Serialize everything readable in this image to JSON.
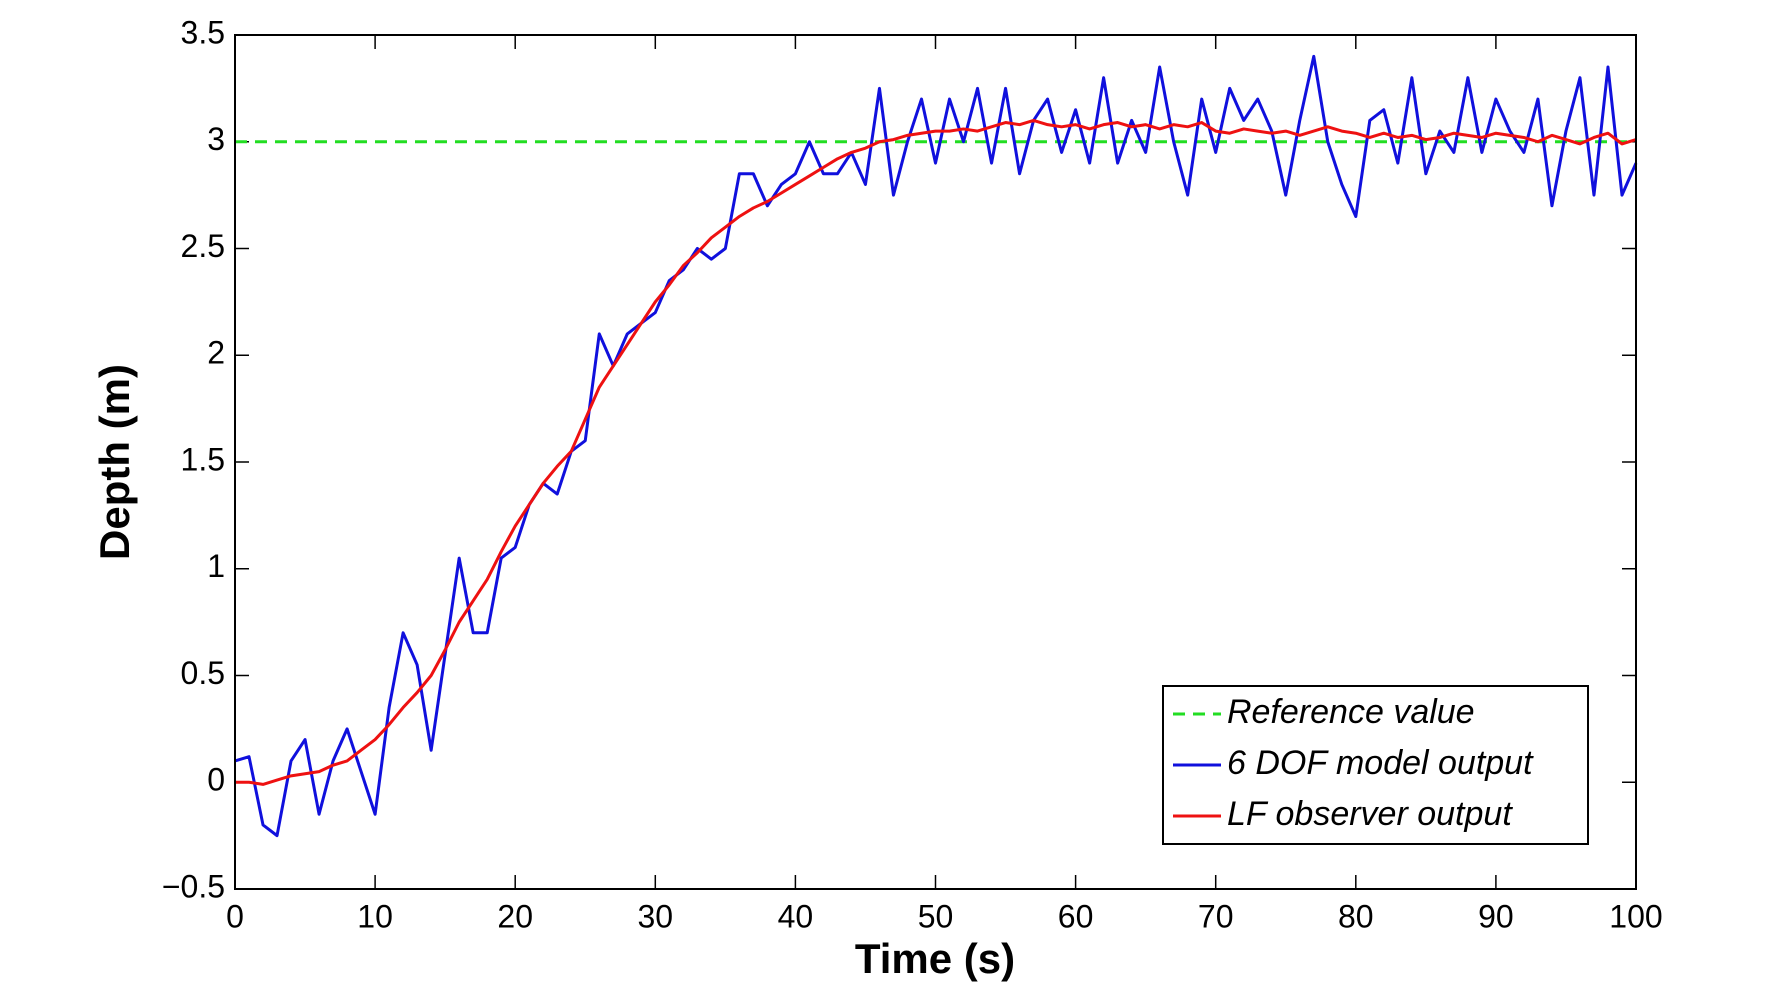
{
  "chart_data": {
    "type": "line",
    "xlabel": "Time (s)",
    "ylabel": "Depth (m)",
    "x": [
      0,
      1,
      2,
      3,
      4,
      5,
      6,
      7,
      8,
      9,
      10,
      11,
      12,
      13,
      14,
      15,
      16,
      17,
      18,
      19,
      20,
      21,
      22,
      23,
      24,
      25,
      26,
      27,
      28,
      29,
      30,
      31,
      32,
      33,
      34,
      35,
      36,
      37,
      38,
      39,
      40,
      41,
      42,
      43,
      44,
      45,
      46,
      47,
      48,
      49,
      50,
      51,
      52,
      53,
      54,
      55,
      56,
      57,
      58,
      59,
      60,
      61,
      62,
      63,
      64,
      65,
      66,
      67,
      68,
      69,
      70,
      71,
      72,
      73,
      74,
      75,
      76,
      77,
      78,
      79,
      80,
      81,
      82,
      83,
      84,
      85,
      86,
      87,
      88,
      89,
      90,
      91,
      92,
      93,
      94,
      95,
      96,
      97,
      98,
      99,
      100
    ],
    "series": [
      {
        "name": "Reference value",
        "color": "#22dd22",
        "style": "dashed",
        "values": [
          3,
          3,
          3,
          3,
          3,
          3,
          3,
          3,
          3,
          3,
          3,
          3,
          3,
          3,
          3,
          3,
          3,
          3,
          3,
          3,
          3,
          3,
          3,
          3,
          3,
          3,
          3,
          3,
          3,
          3,
          3,
          3,
          3,
          3,
          3,
          3,
          3,
          3,
          3,
          3,
          3,
          3,
          3,
          3,
          3,
          3,
          3,
          3,
          3,
          3,
          3,
          3,
          3,
          3,
          3,
          3,
          3,
          3,
          3,
          3,
          3,
          3,
          3,
          3,
          3,
          3,
          3,
          3,
          3,
          3,
          3,
          3,
          3,
          3,
          3,
          3,
          3,
          3,
          3,
          3,
          3,
          3,
          3,
          3,
          3,
          3,
          3,
          3,
          3,
          3,
          3,
          3,
          3,
          3,
          3,
          3,
          3,
          3,
          3,
          3,
          3
        ]
      },
      {
        "name": "6 DOF model output",
        "color": "#1010dd",
        "style": "solid",
        "values": [
          0.1,
          0.12,
          -0.2,
          -0.25,
          0.1,
          0.2,
          -0.15,
          0.1,
          0.25,
          0.05,
          -0.15,
          0.35,
          0.7,
          0.55,
          0.15,
          0.6,
          1.05,
          0.7,
          0.7,
          1.05,
          1.1,
          1.3,
          1.4,
          1.35,
          1.55,
          1.6,
          2.1,
          1.95,
          2.1,
          2.15,
          2.2,
          2.35,
          2.4,
          2.5,
          2.45,
          2.5,
          2.85,
          2.85,
          2.7,
          2.8,
          2.85,
          3.0,
          2.85,
          2.85,
          2.95,
          2.8,
          3.25,
          2.75,
          3.0,
          3.2,
          2.9,
          3.2,
          3.0,
          3.25,
          2.9,
          3.25,
          2.85,
          3.1,
          3.2,
          2.95,
          3.15,
          2.9,
          3.3,
          2.9,
          3.1,
          2.95,
          3.35,
          3.0,
          2.75,
          3.2,
          2.95,
          3.25,
          3.1,
          3.2,
          3.05,
          2.75,
          3.1,
          3.4,
          3.0,
          2.8,
          2.65,
          3.1,
          3.15,
          2.9,
          3.3,
          2.85,
          3.05,
          2.95,
          3.3,
          2.95,
          3.2,
          3.05,
          2.95,
          3.2,
          2.7,
          3.05,
          3.3,
          2.75,
          3.35,
          2.75,
          2.9
        ]
      },
      {
        "name": "LF observer output",
        "color": "#ee1111",
        "style": "solid",
        "values": [
          0,
          0,
          -0.01,
          0.01,
          0.03,
          0.04,
          0.05,
          0.08,
          0.1,
          0.15,
          0.2,
          0.27,
          0.35,
          0.42,
          0.5,
          0.62,
          0.75,
          0.85,
          0.95,
          1.08,
          1.2,
          1.3,
          1.4,
          1.48,
          1.55,
          1.7,
          1.85,
          1.95,
          2.05,
          2.15,
          2.25,
          2.33,
          2.42,
          2.48,
          2.55,
          2.6,
          2.65,
          2.69,
          2.72,
          2.76,
          2.8,
          2.84,
          2.88,
          2.92,
          2.95,
          2.97,
          3.0,
          3.01,
          3.03,
          3.04,
          3.05,
          3.05,
          3.06,
          3.05,
          3.07,
          3.09,
          3.08,
          3.1,
          3.08,
          3.07,
          3.08,
          3.06,
          3.08,
          3.09,
          3.07,
          3.08,
          3.06,
          3.08,
          3.07,
          3.09,
          3.05,
          3.04,
          3.06,
          3.05,
          3.04,
          3.05,
          3.03,
          3.05,
          3.07,
          3.05,
          3.04,
          3.02,
          3.04,
          3.02,
          3.03,
          3.01,
          3.02,
          3.04,
          3.03,
          3.02,
          3.04,
          3.03,
          3.02,
          3.0,
          3.03,
          3.01,
          2.99,
          3.02,
          3.04,
          2.99,
          3.01
        ]
      }
    ],
    "xlim": [
      0,
      100
    ],
    "xticks": [
      0,
      10,
      20,
      30,
      40,
      50,
      60,
      70,
      80,
      90,
      100
    ],
    "ylim": [
      -0.5,
      3.5
    ],
    "yticks": [
      {
        "value": -0.5,
        "label": "−0.5"
      },
      0,
      0.5,
      1,
      1.5,
      2,
      2.5,
      3,
      3.5
    ],
    "grid": false,
    "legend": "lower right"
  }
}
